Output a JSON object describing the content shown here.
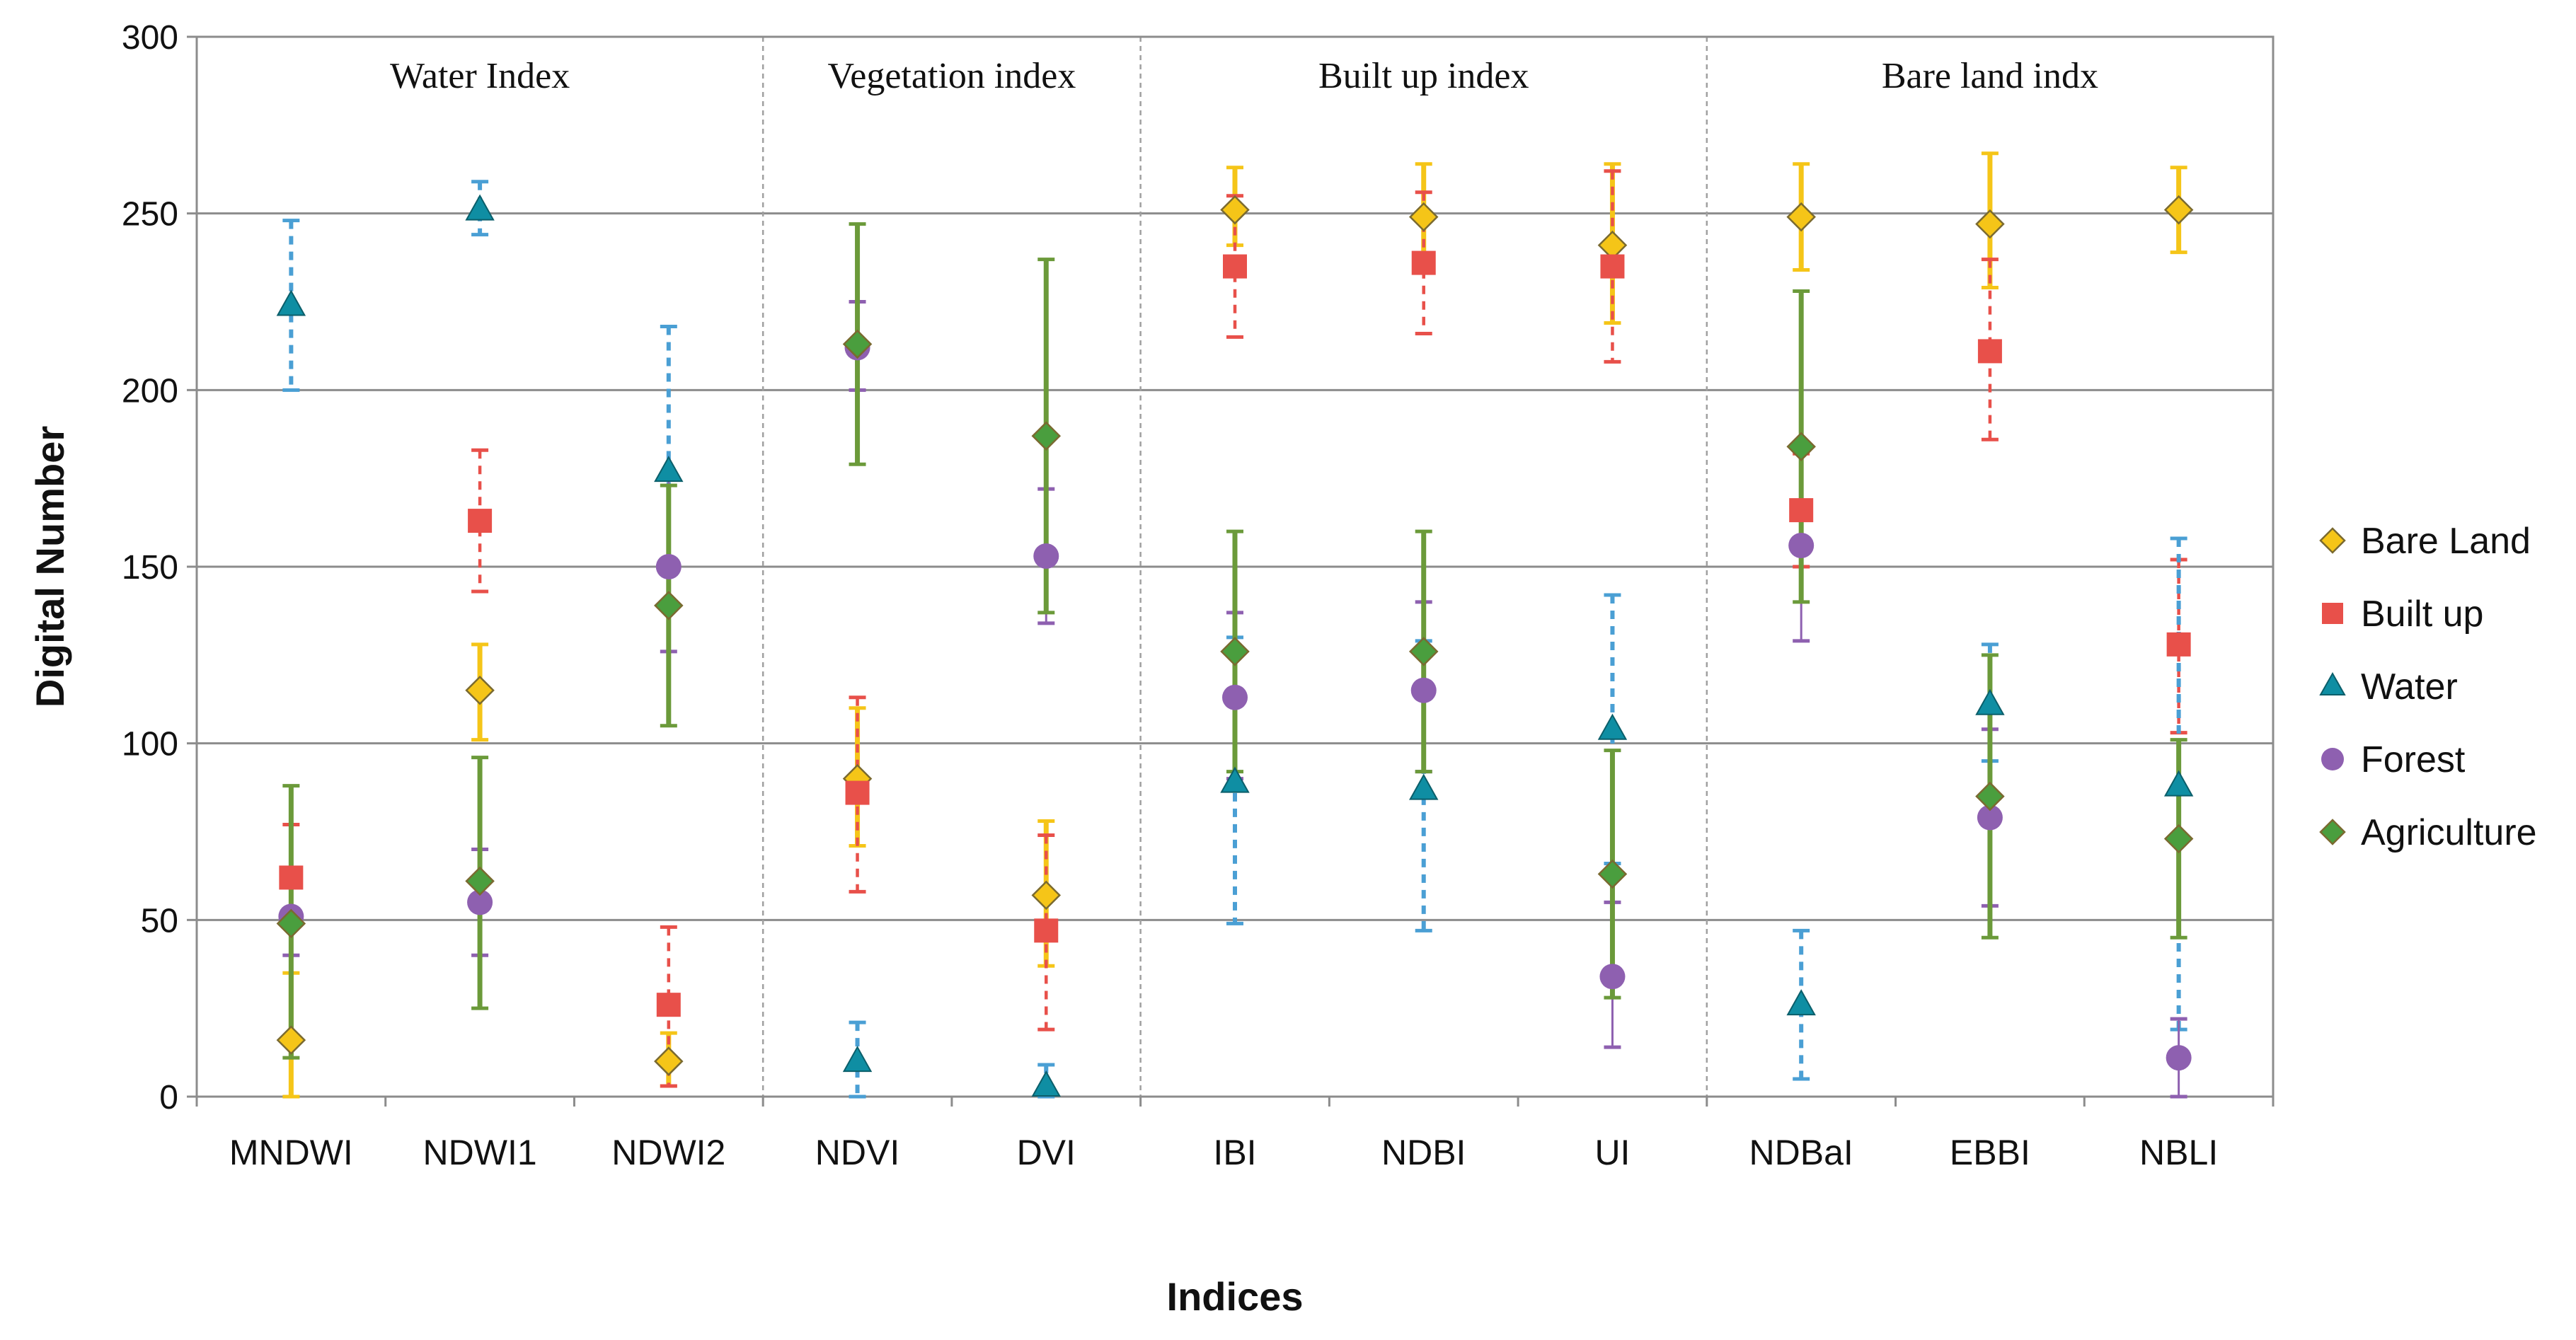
{
  "chart_data": {
    "type": "scatter",
    "subtype": "error_bar",
    "xlabel": "Indices",
    "ylabel": "Digital Number",
    "ylim": [
      0,
      300
    ],
    "yticks": [
      0,
      50,
      100,
      150,
      200,
      250,
      300
    ],
    "categories": [
      "MNDWI",
      "NDWI1",
      "NDWI2",
      "NDVI",
      "DVI",
      "IBI",
      "NDBI",
      "UI",
      "NDBaI",
      "EBBI",
      "NBLI"
    ],
    "groups": [
      {
        "label": "Water Index",
        "start": 0,
        "end": 2
      },
      {
        "label": "Vegetation index",
        "start": 3,
        "end": 4
      },
      {
        "label": "Built up index",
        "start": 5,
        "end": 7
      },
      {
        "label": "Bare land indx",
        "start": 8,
        "end": 10
      }
    ],
    "grid": true,
    "legend_position": "right",
    "series": [
      {
        "name": "Bare Land",
        "color": "#f5c518",
        "marker": "diamond",
        "values": [
          16,
          115,
          10,
          90,
          57,
          251,
          249,
          241,
          249,
          247,
          251
        ],
        "low": [
          0,
          101,
          3,
          71,
          37,
          241,
          236,
          219,
          234,
          229,
          239
        ],
        "high": [
          35,
          128,
          18,
          110,
          78,
          263,
          264,
          264,
          264,
          267,
          263
        ]
      },
      {
        "name": "Built up",
        "color": "#e8504a",
        "marker": "square",
        "values": [
          62,
          163,
          26,
          86,
          47,
          235,
          236,
          235,
          166,
          211,
          128
        ],
        "low": [
          48,
          143,
          3,
          58,
          19,
          215,
          216,
          208,
          150,
          186,
          103
        ],
        "high": [
          77,
          183,
          48,
          113,
          74,
          255,
          256,
          262,
          182,
          237,
          152
        ]
      },
      {
        "name": "Water",
        "color": "#0f8ea3",
        "errcolor": "#4a9fd4",
        "marker": "triangle",
        "values": [
          224,
          251,
          177,
          10,
          3,
          89,
          87,
          104,
          26,
          111,
          88
        ],
        "low": [
          200,
          244,
          138,
          0,
          0,
          49,
          47,
          66,
          5,
          95,
          19
        ],
        "high": [
          248,
          259,
          218,
          21,
          9,
          130,
          129,
          142,
          47,
          128,
          158
        ]
      },
      {
        "name": "Forest",
        "color": "#8e60b0",
        "marker": "circle",
        "values": [
          51,
          55,
          150,
          212,
          153,
          113,
          115,
          34,
          156,
          79,
          11
        ],
        "low": [
          40,
          40,
          126,
          200,
          134,
          90,
          92,
          14,
          129,
          54,
          0
        ],
        "high": [
          61,
          70,
          175,
          225,
          172,
          137,
          140,
          55,
          184,
          104,
          22
        ]
      },
      {
        "name": "Agriculture",
        "color": "#4a9e3e",
        "errcolor": "#6b9a3a",
        "marker": "diamond",
        "values": [
          49,
          61,
          139,
          213,
          187,
          126,
          126,
          63,
          184,
          85,
          73
        ],
        "low": [
          11,
          25,
          105,
          179,
          137,
          92,
          92,
          28,
          140,
          45,
          45
        ],
        "high": [
          88,
          96,
          173,
          247,
          237,
          160,
          160,
          98,
          228,
          125,
          101
        ]
      }
    ]
  }
}
